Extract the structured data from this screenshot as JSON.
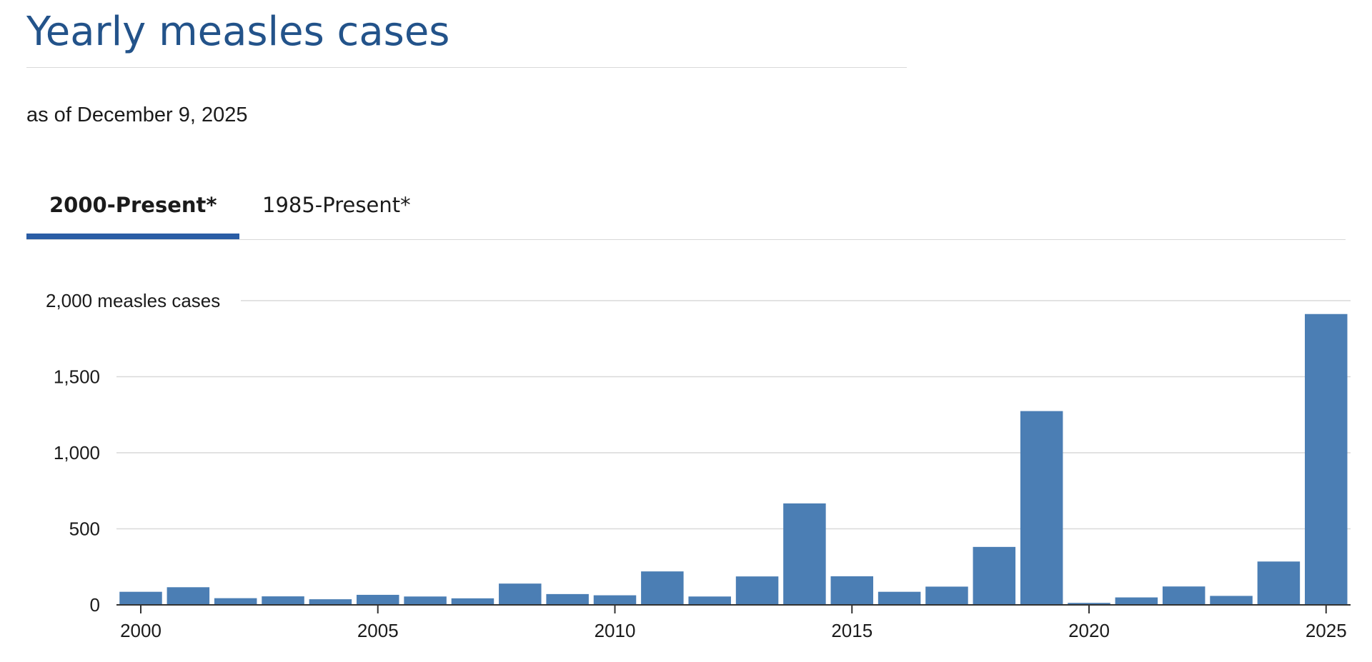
{
  "header": {
    "title": "Yearly measles cases",
    "subtitle": "as of December 9, 2025"
  },
  "tabs": [
    {
      "label": "2000-Present*",
      "active": true
    },
    {
      "label": "1985-Present*",
      "active": false
    }
  ],
  "colors": {
    "title": "#23538a",
    "bar": "#4b7eb4",
    "tab_underline": "#2a5da5",
    "grid": "#d9d9d9"
  },
  "chart_data": {
    "type": "bar",
    "title": "",
    "xlabel": "",
    "ylabel": "",
    "ylim": [
      0,
      2000
    ],
    "y_ticks": [
      {
        "value": 0,
        "label": "0"
      },
      {
        "value": 500,
        "label": "500"
      },
      {
        "value": 1000,
        "label": "1,000"
      },
      {
        "value": 1500,
        "label": "1,500"
      },
      {
        "value": 2000,
        "label": "2,000 measles cases"
      }
    ],
    "x_ticks": [
      2000,
      2005,
      2010,
      2015,
      2020,
      2025
    ],
    "grid": true,
    "categories": [
      2000,
      2001,
      2002,
      2003,
      2004,
      2005,
      2006,
      2007,
      2008,
      2009,
      2010,
      2011,
      2012,
      2013,
      2014,
      2015,
      2016,
      2017,
      2018,
      2019,
      2020,
      2021,
      2022,
      2023,
      2024,
      2025
    ],
    "values": [
      86,
      116,
      44,
      56,
      37,
      66,
      55,
      43,
      140,
      71,
      63,
      220,
      55,
      187,
      667,
      188,
      86,
      120,
      381,
      1274,
      13,
      49,
      121,
      59,
      285,
      1912
    ]
  }
}
